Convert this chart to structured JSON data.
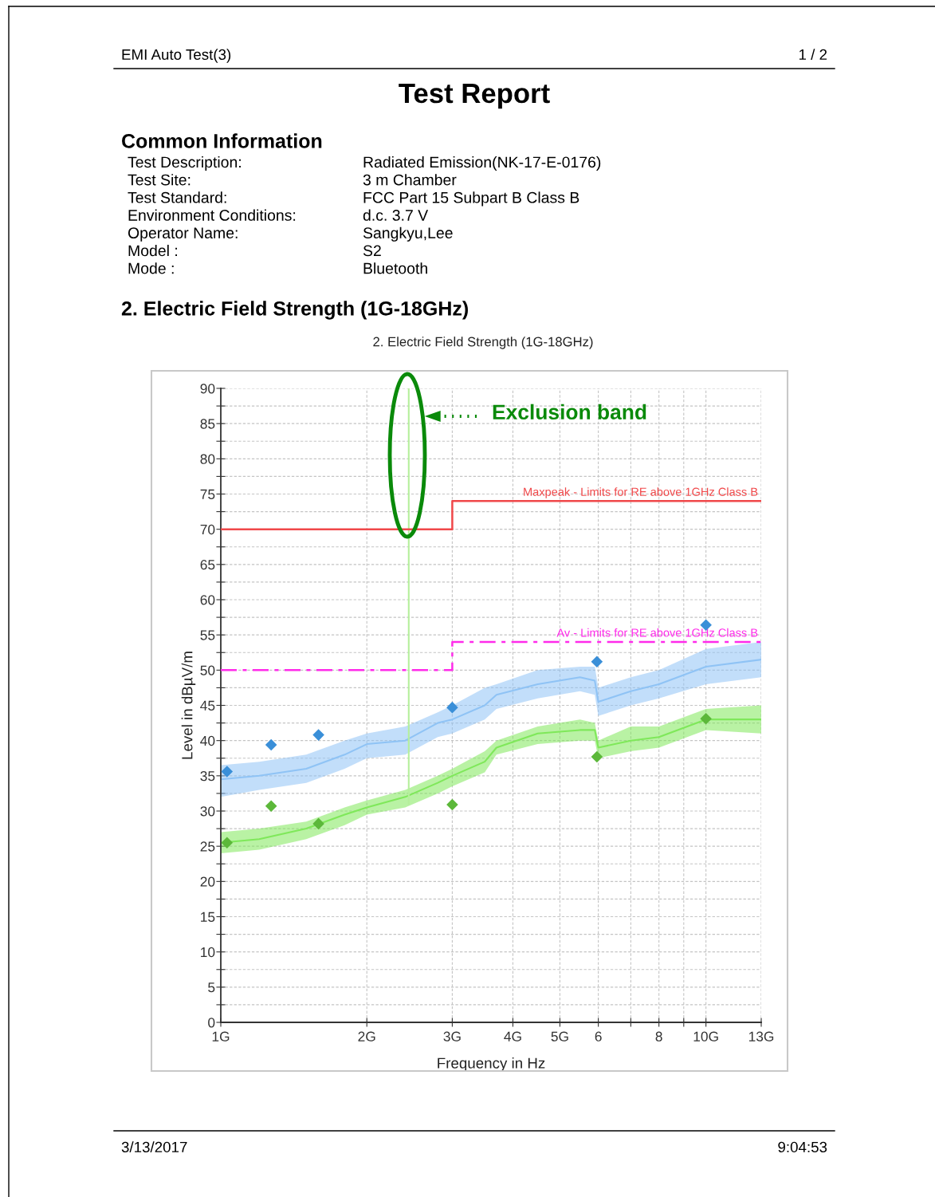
{
  "chart_data": {
    "type": "line",
    "title": "2. Electric Field Strength (1G-18GHz)",
    "xlabel": "Frequency in Hz",
    "ylabel": "Level in dBµV/m",
    "log": "x",
    "grid": true,
    "legend": false,
    "xlim": [
      1,
      13
    ],
    "xticks": [
      {
        "value": 1,
        "label": "1G"
      },
      {
        "value": 2,
        "label": "2G"
      },
      {
        "value": 3,
        "label": "3G"
      },
      {
        "value": 4,
        "label": "4G"
      },
      {
        "value": 5,
        "label": "5G"
      },
      6,
      {
        "value": 7,
        "label": null
      },
      8,
      {
        "value": 9,
        "label": null
      },
      {
        "value": 10,
        "label": "10G"
      },
      {
        "value": 13,
        "label": "13G"
      }
    ],
    "ylim": [
      0,
      90
    ],
    "yticks": [
      0,
      {
        "value": 2.5,
        "label": null
      },
      5,
      {
        "value": 7.5,
        "label": null
      },
      10,
      {
        "value": 12.5,
        "label": null
      },
      15,
      {
        "value": 17.5,
        "label": null
      },
      20,
      {
        "value": 22.5,
        "label": null
      },
      25,
      {
        "value": 27.5,
        "label": null
      },
      30,
      {
        "value": 32.5,
        "label": null
      },
      35,
      {
        "value": 37.5,
        "label": null
      },
      40,
      {
        "value": 42.5,
        "label": null
      },
      45,
      {
        "value": 47.5,
        "label": null
      },
      50,
      {
        "value": 52.5,
        "label": null
      },
      55,
      {
        "value": 57.5,
        "label": null
      },
      60,
      {
        "value": 62.5,
        "label": null
      },
      65,
      {
        "value": 67.5,
        "label": null
      },
      70,
      {
        "value": 72.5,
        "label": null
      },
      75,
      {
        "value": 77.5,
        "label": null
      },
      80,
      {
        "value": 82.5,
        "label": null
      },
      85,
      {
        "value": 87.5,
        "label": null
      },
      90
    ],
    "series": [
      {
        "color": "#8fc3f5",
        "x": [
          1,
          1.2,
          1.5,
          1.8,
          2,
          2.4,
          2.8,
          3,
          3.5,
          3.7,
          4.5,
          5.5,
          5.9,
          6,
          7,
          8,
          10,
          13
        ],
        "values": [
          34.5,
          35,
          36,
          38,
          39.5,
          40,
          42.5,
          43,
          45,
          46.5,
          48,
          49,
          48.5,
          45.5,
          47,
          48,
          50.5,
          51.5
        ],
        "lower": [
          32,
          33,
          34,
          36,
          37.5,
          38,
          40.5,
          41,
          43,
          44.5,
          46,
          47,
          46.5,
          43.5,
          45,
          46,
          48,
          49
        ],
        "upper": [
          36.5,
          37,
          38,
          40,
          41,
          42,
          44,
          45,
          47.5,
          48,
          50,
          50.5,
          50.5,
          47.5,
          49,
          50,
          53,
          54
        ]
      },
      {
        "color": "#7fe85a",
        "x": [
          1,
          1.2,
          1.5,
          1.8,
          2,
          2.4,
          2.8,
          3,
          3.5,
          3.7,
          4.5,
          5.5,
          5.9,
          6,
          7,
          8,
          10,
          13
        ],
        "values": [
          25.5,
          26,
          27.5,
          29.5,
          30.5,
          32,
          34,
          35,
          37,
          39,
          41,
          41.5,
          41.5,
          39,
          40,
          40.5,
          43,
          43
        ],
        "lower": [
          24,
          24.5,
          26,
          28,
          29.5,
          30.5,
          32.5,
          33.5,
          35.5,
          38,
          39.5,
          40,
          40,
          37.5,
          38.5,
          39,
          41.5,
          41
        ],
        "upper": [
          27,
          27.5,
          28.5,
          30.5,
          31.5,
          33,
          35,
          36,
          38.5,
          40,
          42,
          43,
          42.5,
          40,
          42,
          42,
          44.5,
          45
        ]
      },
      {
        "color": "#b5ef9c",
        "x": [
          2.44,
          2.44
        ],
        "values": [
          31,
          90
        ]
      },
      {
        "type": "step",
        "name": "Maxpeak - Limits for RE above 1GHz Class B",
        "color": "#f0484a",
        "line_style": "solid",
        "x": [
          1,
          3,
          13
        ],
        "values": [
          70,
          74,
          74
        ]
      },
      {
        "type": "step",
        "name": "Av - Limits for RE above 1GHz Class B",
        "color": "#ff2bea",
        "line_style": "dashdot",
        "x": [
          1,
          3,
          13
        ],
        "values": [
          50,
          54,
          54
        ]
      },
      {
        "type": "scatter",
        "color": "#3a8fd8",
        "marker": "diamond",
        "x": [
          1.03,
          1.27,
          1.59,
          3,
          5.96,
          10
        ],
        "values": [
          35.6,
          39.4,
          40.8,
          44.7,
          51.2,
          56.4
        ]
      },
      {
        "type": "scatter",
        "color": "#5cb83a",
        "marker": "diamond",
        "x": [
          1.03,
          1.27,
          1.59,
          3,
          5.96,
          10
        ],
        "values": [
          25.5,
          30.7,
          28.2,
          30.9,
          37.7,
          43.1
        ]
      }
    ],
    "annotations": [
      "EMI Auto Test(3)",
      "1 / 2",
      "Test Report",
      "Common Information",
      "Test Description:",
      "Radiated Emission(NK-17-E-0176)",
      "Test Site:",
      "3 m Chamber",
      "Test Standard:",
      "FCC Part 15 Subpart B Class B",
      "Environment Conditions:",
      "d.c. 3.7 V",
      "Operator Name:",
      "Sangkyu,Lee",
      "Model :",
      "S2",
      "Mode :",
      "Bluetooth",
      "2. Electric Field Strength (1G-18GHz)",
      "3/13/2017",
      "9:04:53",
      "Exclusion band"
    ]
  }
}
